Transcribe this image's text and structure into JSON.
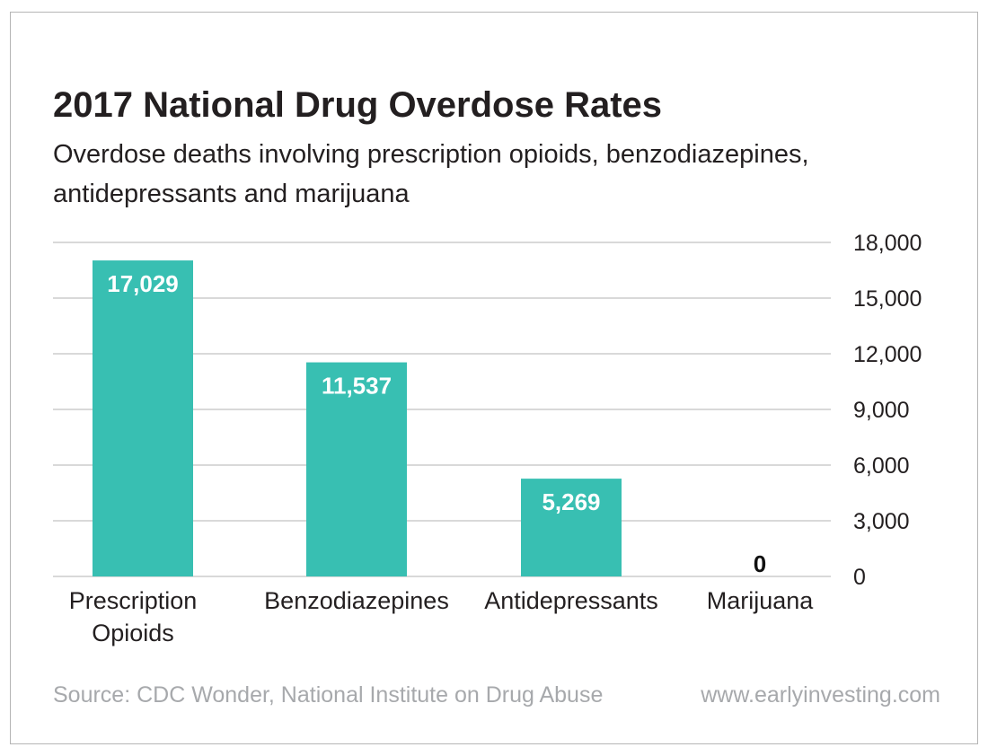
{
  "chart_data": {
    "type": "bar",
    "title": "2017 National Drug Overdose Rates",
    "subtitle": "Overdose deaths involving prescription opioids, benzodiazepines, antidepressants and marijuana",
    "categories": [
      [
        "Prescription",
        "Opioids"
      ],
      [
        "Benzodiazepines"
      ],
      [
        "Antidepressants"
      ],
      [
        "Marijuana"
      ]
    ],
    "values": [
      17029,
      11537,
      5269,
      0
    ],
    "value_labels": [
      "17,029",
      "11,537",
      "5,269",
      "0"
    ],
    "yticks": [
      0,
      3000,
      6000,
      9000,
      12000,
      15000,
      18000
    ],
    "ytick_labels": [
      "0",
      "3,000",
      "6,000",
      "9,000",
      "12,000",
      "15,000",
      "18,000"
    ],
    "ylim": [
      0,
      18000
    ],
    "y_axis_side": "right",
    "grid": true,
    "legend": "none",
    "xlabel": "",
    "ylabel": "",
    "colors": {
      "bar": "#38bfb2",
      "grid": "#b3b3b3",
      "value_label_inside": "#ffffff",
      "value_label_outside": "#111111"
    }
  },
  "footer": {
    "source": "Source: CDC Wonder, National Institute on Drug Abuse",
    "site": "www.earlyinvesting.com"
  }
}
